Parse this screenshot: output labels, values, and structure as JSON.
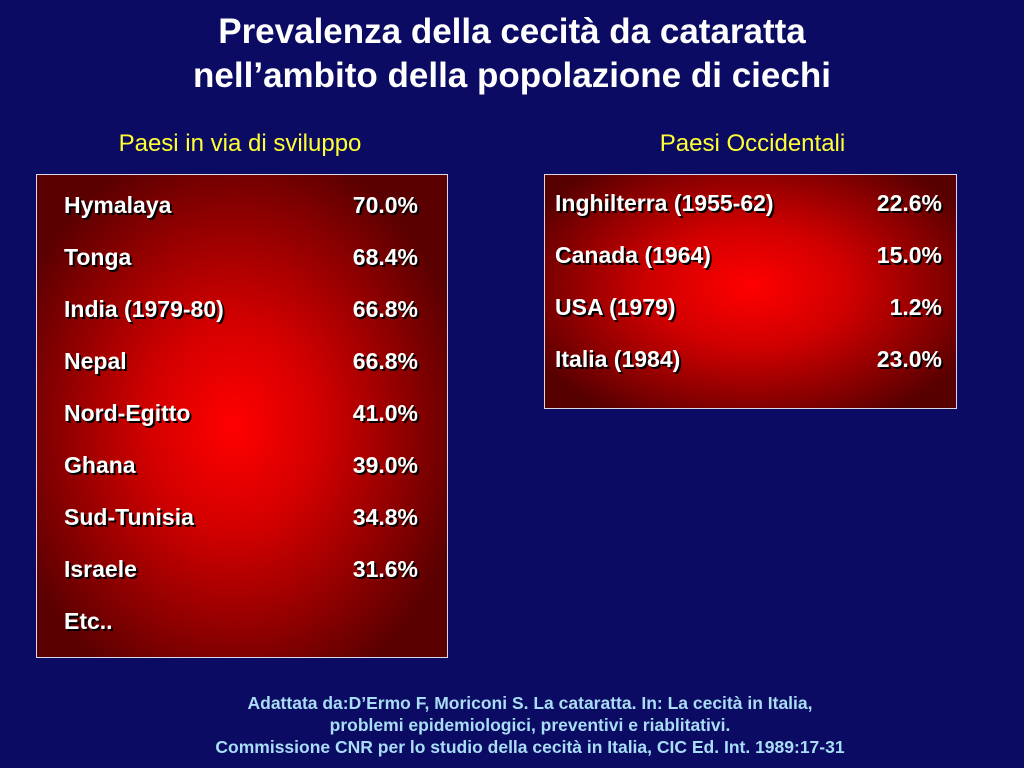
{
  "title": {
    "line1": "Prevalenza della cecità da cataratta",
    "line2": "nell’ambito della popolazione di ciechi"
  },
  "left": {
    "heading": "Paesi in via di sviluppo",
    "rows": [
      {
        "name": "Hymalaya",
        "pct": "70.0%"
      },
      {
        "name": "Tonga",
        "pct": "68.4%"
      },
      {
        "name": "India (1979-80)",
        "pct": "66.8%"
      },
      {
        "name": "Nepal",
        "pct": "66.8%"
      },
      {
        "name": "Nord-Egitto",
        "pct": "41.0%"
      },
      {
        "name": "Ghana",
        "pct": "39.0%"
      },
      {
        "name": "Sud-Tunisia",
        "pct": "34.8%"
      },
      {
        "name": "Israele",
        "pct": "31.6%"
      },
      {
        "name": "Etc..",
        "pct": ""
      }
    ]
  },
  "right": {
    "heading": "Paesi Occidentali",
    "rows": [
      {
        "name": "Inghilterra (1955-62)",
        "pct": "22.6%"
      },
      {
        "name": "Canada (1964)",
        "pct": "15.0%"
      },
      {
        "name": "USA (1979)",
        "pct": "1.2%"
      },
      {
        "name": "Italia (1984)",
        "pct": "23.0%"
      }
    ]
  },
  "source": {
    "line1": "Adattata da:D’Ermo F, Moriconi S. La cataratta. In: La cecità in Italia,",
    "line2": "problemi epidemiologici, preventivi e riablitativi.",
    "line3": "Commissione CNR per lo studio della cecità in Italia, CIC Ed. Int. 1989:17-31"
  },
  "colors": {
    "background": "#0b0b63",
    "heading": "#ffff33",
    "panel": "#ff0000",
    "source": "#a9ddf5"
  }
}
